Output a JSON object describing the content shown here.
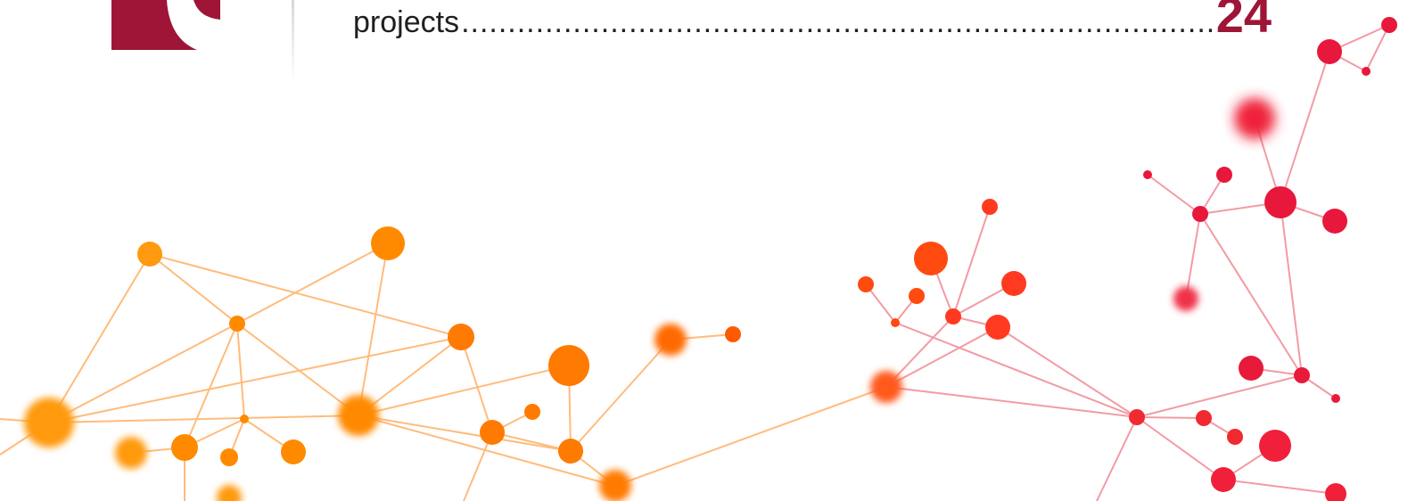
{
  "toc": {
    "label": "projects",
    "leader": "........................................................................................................................................................................................................................",
    "page": "24"
  },
  "colors": {
    "accent": "#9e1537",
    "text": "#1f1f1f",
    "network_orange": "#ff8a00",
    "network_red": "#e8173c"
  },
  "icons": {
    "logo": "brand-logo-fragment",
    "illustration": "network-graph-illustration"
  }
}
